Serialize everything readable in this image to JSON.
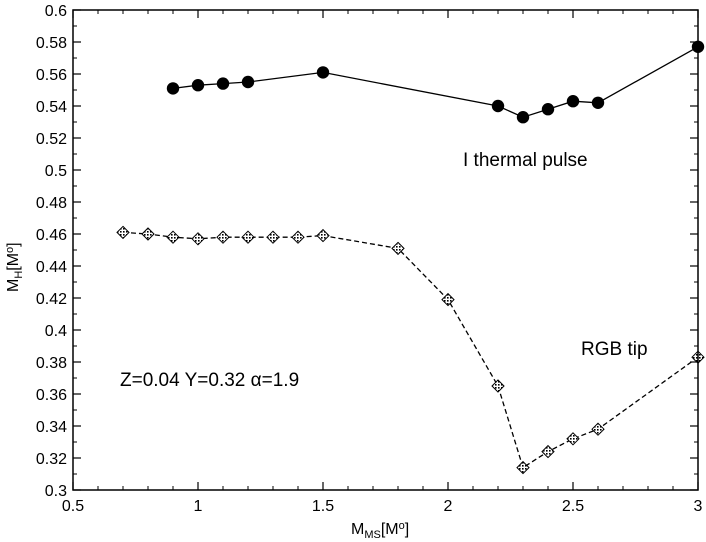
{
  "chart_data": {
    "type": "line",
    "xlim": [
      0.5,
      3.0
    ],
    "ylim": [
      0.3,
      0.6
    ],
    "x_ticks": [
      0.5,
      1,
      1.5,
      2,
      2.5,
      3
    ],
    "x_tick_labels": [
      "0.5",
      "1",
      "1.5",
      "2",
      "2.5",
      "3"
    ],
    "y_ticks": [
      0.3,
      0.32,
      0.34,
      0.36,
      0.38,
      0.4,
      0.42,
      0.44,
      0.46,
      0.48,
      0.5,
      0.52,
      0.54,
      0.56,
      0.58,
      0.6
    ],
    "y_tick_labels": [
      "0.3",
      "0.32",
      "0.34",
      "0.36",
      "0.38",
      "0.4",
      "0.42",
      "0.44",
      "0.46",
      "0.48",
      "0.5",
      "0.52",
      "0.54",
      "0.56",
      "0.58",
      "0.6"
    ],
    "xlabel": {
      "main": "M",
      "sub": "MS",
      "units_open": "[M",
      "units_sub": "o",
      "units_close": "]"
    },
    "ylabel": {
      "main": "M",
      "sub": "H",
      "units_open": "[M",
      "units_sub": "o",
      "units_close": "]"
    },
    "grid": false,
    "series": [
      {
        "name": "I thermal pulse",
        "style": "solid",
        "marker": "filled-circle",
        "color": "#000000",
        "x": [
          0.9,
          1.0,
          1.1,
          1.2,
          1.5,
          2.2,
          2.3,
          2.4,
          2.5,
          2.6,
          3.0
        ],
        "y": [
          0.551,
          0.553,
          0.554,
          0.555,
          0.561,
          0.54,
          0.533,
          0.538,
          0.543,
          0.542,
          0.577
        ]
      },
      {
        "name": "RGB tip",
        "style": "dashed",
        "marker": "hatched-diamond",
        "color": "#000000",
        "x": [
          0.7,
          0.8,
          0.9,
          1.0,
          1.1,
          1.2,
          1.3,
          1.4,
          1.5,
          1.8,
          2.0,
          2.2,
          2.3,
          2.4,
          2.5,
          2.6,
          3.0
        ],
        "y": [
          0.461,
          0.46,
          0.458,
          0.457,
          0.458,
          0.458,
          0.458,
          0.458,
          0.459,
          0.451,
          0.419,
          0.365,
          0.314,
          0.324,
          0.332,
          0.338,
          0.383
        ]
      }
    ],
    "annotations": {
      "thermal_pulse": "I thermal pulse",
      "rgb_tip": "RGB tip",
      "params": "Z=0.04 Y=0.32 α=1.9"
    }
  }
}
